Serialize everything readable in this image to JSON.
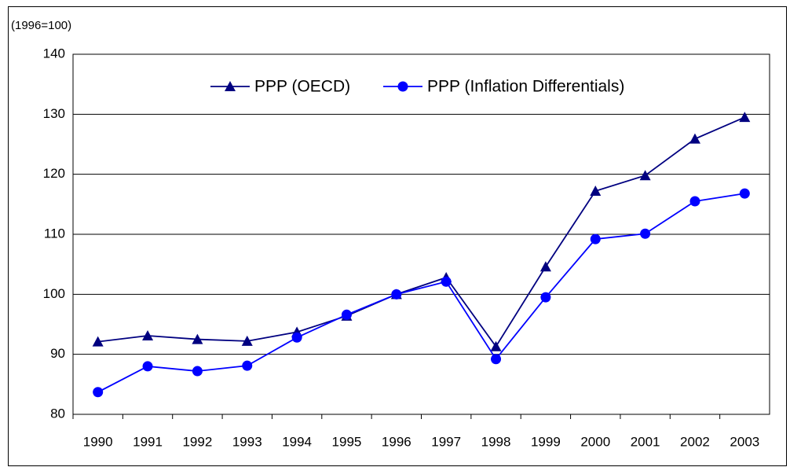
{
  "chart_data": {
    "type": "line",
    "unit_label": "(1996=100)",
    "categories": [
      "1990",
      "1991",
      "1992",
      "1993",
      "1994",
      "1995",
      "1996",
      "1997",
      "1998",
      "1999",
      "2000",
      "2001",
      "2002",
      "2003"
    ],
    "series": [
      {
        "name": "PPP (OECD)",
        "color": "#000080",
        "marker": "triangle",
        "values": [
          92.1,
          93.1,
          92.5,
          92.2,
          93.7,
          96.4,
          100,
          102.8,
          91.3,
          104.6,
          117.2,
          119.8,
          125.9,
          129.5
        ]
      },
      {
        "name": "PPP (Inflation Differentials)",
        "color": "#0000ff",
        "marker": "circle",
        "values": [
          83.7,
          88.0,
          87.2,
          88.1,
          92.8,
          96.6,
          100,
          102.1,
          89.2,
          99.5,
          109.2,
          110.1,
          115.5,
          116.8
        ]
      }
    ],
    "ylim": [
      80,
      140
    ],
    "yticks": [
      80,
      90,
      100,
      110,
      120,
      130,
      140
    ],
    "grid": true
  }
}
